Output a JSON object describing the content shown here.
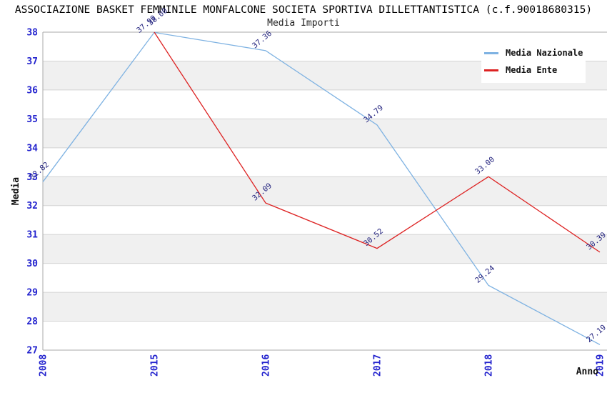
{
  "header": {
    "title": "ASSOCIAZIONE BASKET FEMMINILE MONFALCONE SOCIETA SPORTIVA DILLETTANTISTICA (c.f.90018680315)",
    "subtitle": "Media Importi"
  },
  "legend": {
    "position": "top-right",
    "items": [
      {
        "label": "Media Nazionale",
        "color": "#7EB2E2"
      },
      {
        "label": "Media Ente",
        "color": "#DD2222"
      }
    ]
  },
  "colors": {
    "band": "#f0f0f0",
    "grid": "#d4d4d4",
    "axis": "#a8a8a8",
    "tick_label": "#2323CE",
    "data_label": "#22227E",
    "axis_title": "#111111"
  },
  "chart_data": {
    "type": "line",
    "title": "Media Importi",
    "xlabel": "Anno",
    "ylabel": "Media",
    "x": [
      2008,
      2015,
      2016,
      2017,
      2018,
      2019
    ],
    "ylim": [
      27,
      38
    ],
    "yticks": [
      27,
      28,
      29,
      30,
      31,
      32,
      33,
      34,
      35,
      36,
      37,
      38
    ],
    "grid": true,
    "background_bands": "alternating gray/white horizontal unit bands",
    "legend_position": "top-right",
    "series": [
      {
        "name": "Media Nazionale",
        "color": "#7EB2E2",
        "x": [
          2008,
          2015,
          2016,
          2017,
          2018,
          2019
        ],
        "values": [
          32.82,
          37.99,
          37.36,
          34.79,
          29.24,
          27.19
        ],
        "labels": [
          "32.82",
          "37.99",
          "37.36",
          "34.79",
          "29.24",
          "27.19"
        ],
        "label_offsets": {
          "1": [
            -9,
            -9
          ]
        }
      },
      {
        "name": "Media Ente",
        "color": "#DD2222",
        "x": [
          2015,
          2016,
          2017,
          2018,
          2019
        ],
        "values": [
          38.0,
          32.09,
          30.52,
          33.0,
          30.39
        ],
        "labels": [
          "38.00",
          "32.09",
          "30.52",
          "33.00",
          "30.39"
        ],
        "label_offsets": {
          "0": [
            7,
            -19
          ]
        }
      }
    ]
  }
}
